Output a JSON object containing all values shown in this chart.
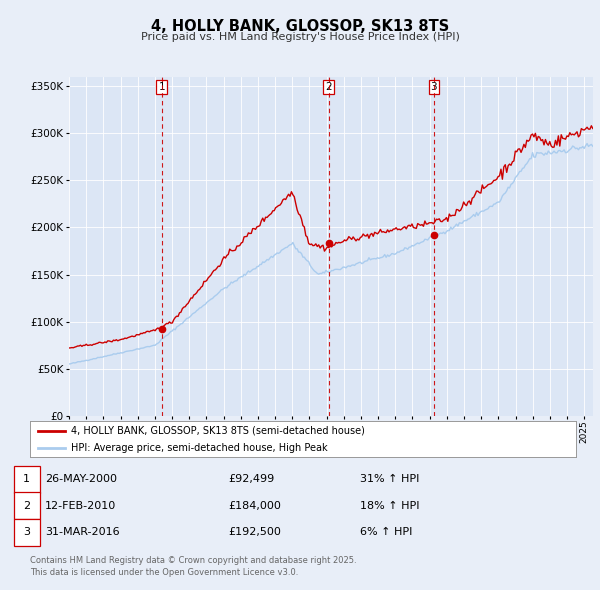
{
  "title": "4, HOLLY BANK, GLOSSOP, SK13 8TS",
  "subtitle": "Price paid vs. HM Land Registry's House Price Index (HPI)",
  "bg_color": "#e8eef8",
  "plot_bg_color": "#dce6f5",
  "line1_color": "#cc0000",
  "line2_color": "#aaccee",
  "ylim": [
    0,
    360000
  ],
  "yticks": [
    0,
    50000,
    100000,
    150000,
    200000,
    250000,
    300000,
    350000
  ],
  "ytick_labels": [
    "£0",
    "£50K",
    "£100K",
    "£150K",
    "£200K",
    "£250K",
    "£300K",
    "£350K"
  ],
  "xmin": 1995.0,
  "xmax": 2025.5,
  "sale_dates": [
    2000.4,
    2010.12,
    2016.25
  ],
  "sale_prices": [
    92499,
    184000,
    192500
  ],
  "sale_labels": [
    "1",
    "2",
    "3"
  ],
  "vline_color": "#cc0000",
  "legend_line1": "4, HOLLY BANK, GLOSSOP, SK13 8TS (semi-detached house)",
  "legend_line2": "HPI: Average price, semi-detached house, High Peak",
  "table_entries": [
    {
      "num": "1",
      "date": "26-MAY-2000",
      "price": "£92,499",
      "hpi": "31% ↑ HPI"
    },
    {
      "num": "2",
      "date": "12-FEB-2010",
      "price": "£184,000",
      "hpi": "18% ↑ HPI"
    },
    {
      "num": "3",
      "date": "31-MAR-2016",
      "price": "£192,500",
      "hpi": "6% ↑ HPI"
    }
  ],
  "footnote": "Contains HM Land Registry data © Crown copyright and database right 2025.\nThis data is licensed under the Open Government Licence v3.0."
}
